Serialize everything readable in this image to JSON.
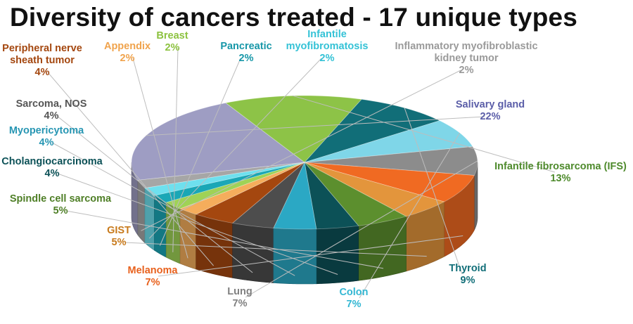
{
  "chart_data": {
    "type": "pie",
    "title": "Diversity of cancers treated - 17 unique types",
    "unit": "%",
    "slices": [
      {
        "label": "Salivary gland",
        "lines": [
          "Salivary gland"
        ],
        "value": 22,
        "value_text": "22%",
        "color": "#9e9dc3",
        "label_color": "#5b5ea8"
      },
      {
        "label": "Infantile fibrosarcoma (IFS)",
        "lines": [
          "Infantile fibrosarcoma (IFS)"
        ],
        "value": 13,
        "value_text": "13%",
        "color": "#8dc347",
        "label_color": "#4e8a2c"
      },
      {
        "label": "Thyroid",
        "lines": [
          "Thyroid"
        ],
        "value": 9,
        "value_text": "9%",
        "color": "#116e78",
        "label_color": "#116e78"
      },
      {
        "label": "Colon",
        "lines": [
          "Colon"
        ],
        "value": 7,
        "value_text": "7%",
        "color": "#7fd6e8",
        "label_color": "#33b7d3"
      },
      {
        "label": "Lung",
        "lines": [
          "Lung"
        ],
        "value": 7,
        "value_text": "7%",
        "color": "#8c8c8c",
        "label_color": "#808080"
      },
      {
        "label": "Melanoma",
        "lines": [
          "Melanoma"
        ],
        "value": 7,
        "value_text": "7%",
        "color": "#f06a22",
        "label_color": "#e8611d"
      },
      {
        "label": "GIST",
        "lines": [
          "GIST"
        ],
        "value": 5,
        "value_text": "5%",
        "color": "#e3953c",
        "label_color": "#c87a1c"
      },
      {
        "label": "Spindle cell sarcoma",
        "lines": [
          "Spindle cell sarcoma"
        ],
        "value": 5,
        "value_text": "5%",
        "color": "#5c8f2e",
        "label_color": "#4f7f27"
      },
      {
        "label": "Cholangiocarcinoma",
        "lines": [
          "Cholangiocarcinoma"
        ],
        "value": 4,
        "value_text": "4%",
        "color": "#0c5157",
        "label_color": "#0c5157"
      },
      {
        "label": "Myopericytoma",
        "lines": [
          "Myopericytoma"
        ],
        "value": 4,
        "value_text": "4%",
        "color": "#2ba8c4",
        "label_color": "#2796b3"
      },
      {
        "label": "Sarcoma, NOS",
        "lines": [
          "Sarcoma, NOS"
        ],
        "value": 4,
        "value_text": "4%",
        "color": "#4d4d4d",
        "label_color": "#555555"
      },
      {
        "label": "Peripheral nerve sheath tumor",
        "lines": [
          "Peripheral nerve",
          "sheath tumor"
        ],
        "value": 4,
        "value_text": "4%",
        "color": "#a4470f",
        "label_color": "#a4470f"
      },
      {
        "label": "Appendix",
        "lines": [
          "Appendix"
        ],
        "value": 2,
        "value_text": "2%",
        "color": "#f5ad5c",
        "label_color": "#f0a34c"
      },
      {
        "label": "Breast",
        "lines": [
          "Breast"
        ],
        "value": 2,
        "value_text": "2%",
        "color": "#9fd256",
        "label_color": "#8cc23f"
      },
      {
        "label": "Pancreatic",
        "lines": [
          "Pancreatic"
        ],
        "value": 2,
        "value_text": "2%",
        "color": "#1aa7b6",
        "label_color": "#1797a8"
      },
      {
        "label": "Infantile myofibromatosis",
        "lines": [
          "Infantile",
          "myofibromatosis"
        ],
        "value": 2,
        "value_text": "2%",
        "color": "#6ee0ee",
        "label_color": "#34c2d6"
      },
      {
        "label": "Inflammatory myofibroblastic kidney tumor",
        "lines": [
          "Inflammatory myofibroblastic",
          "kidney tumor"
        ],
        "value": 2,
        "value_text": "2%",
        "color": "#a6a6a6",
        "label_color": "#9a9a9a"
      }
    ]
  }
}
